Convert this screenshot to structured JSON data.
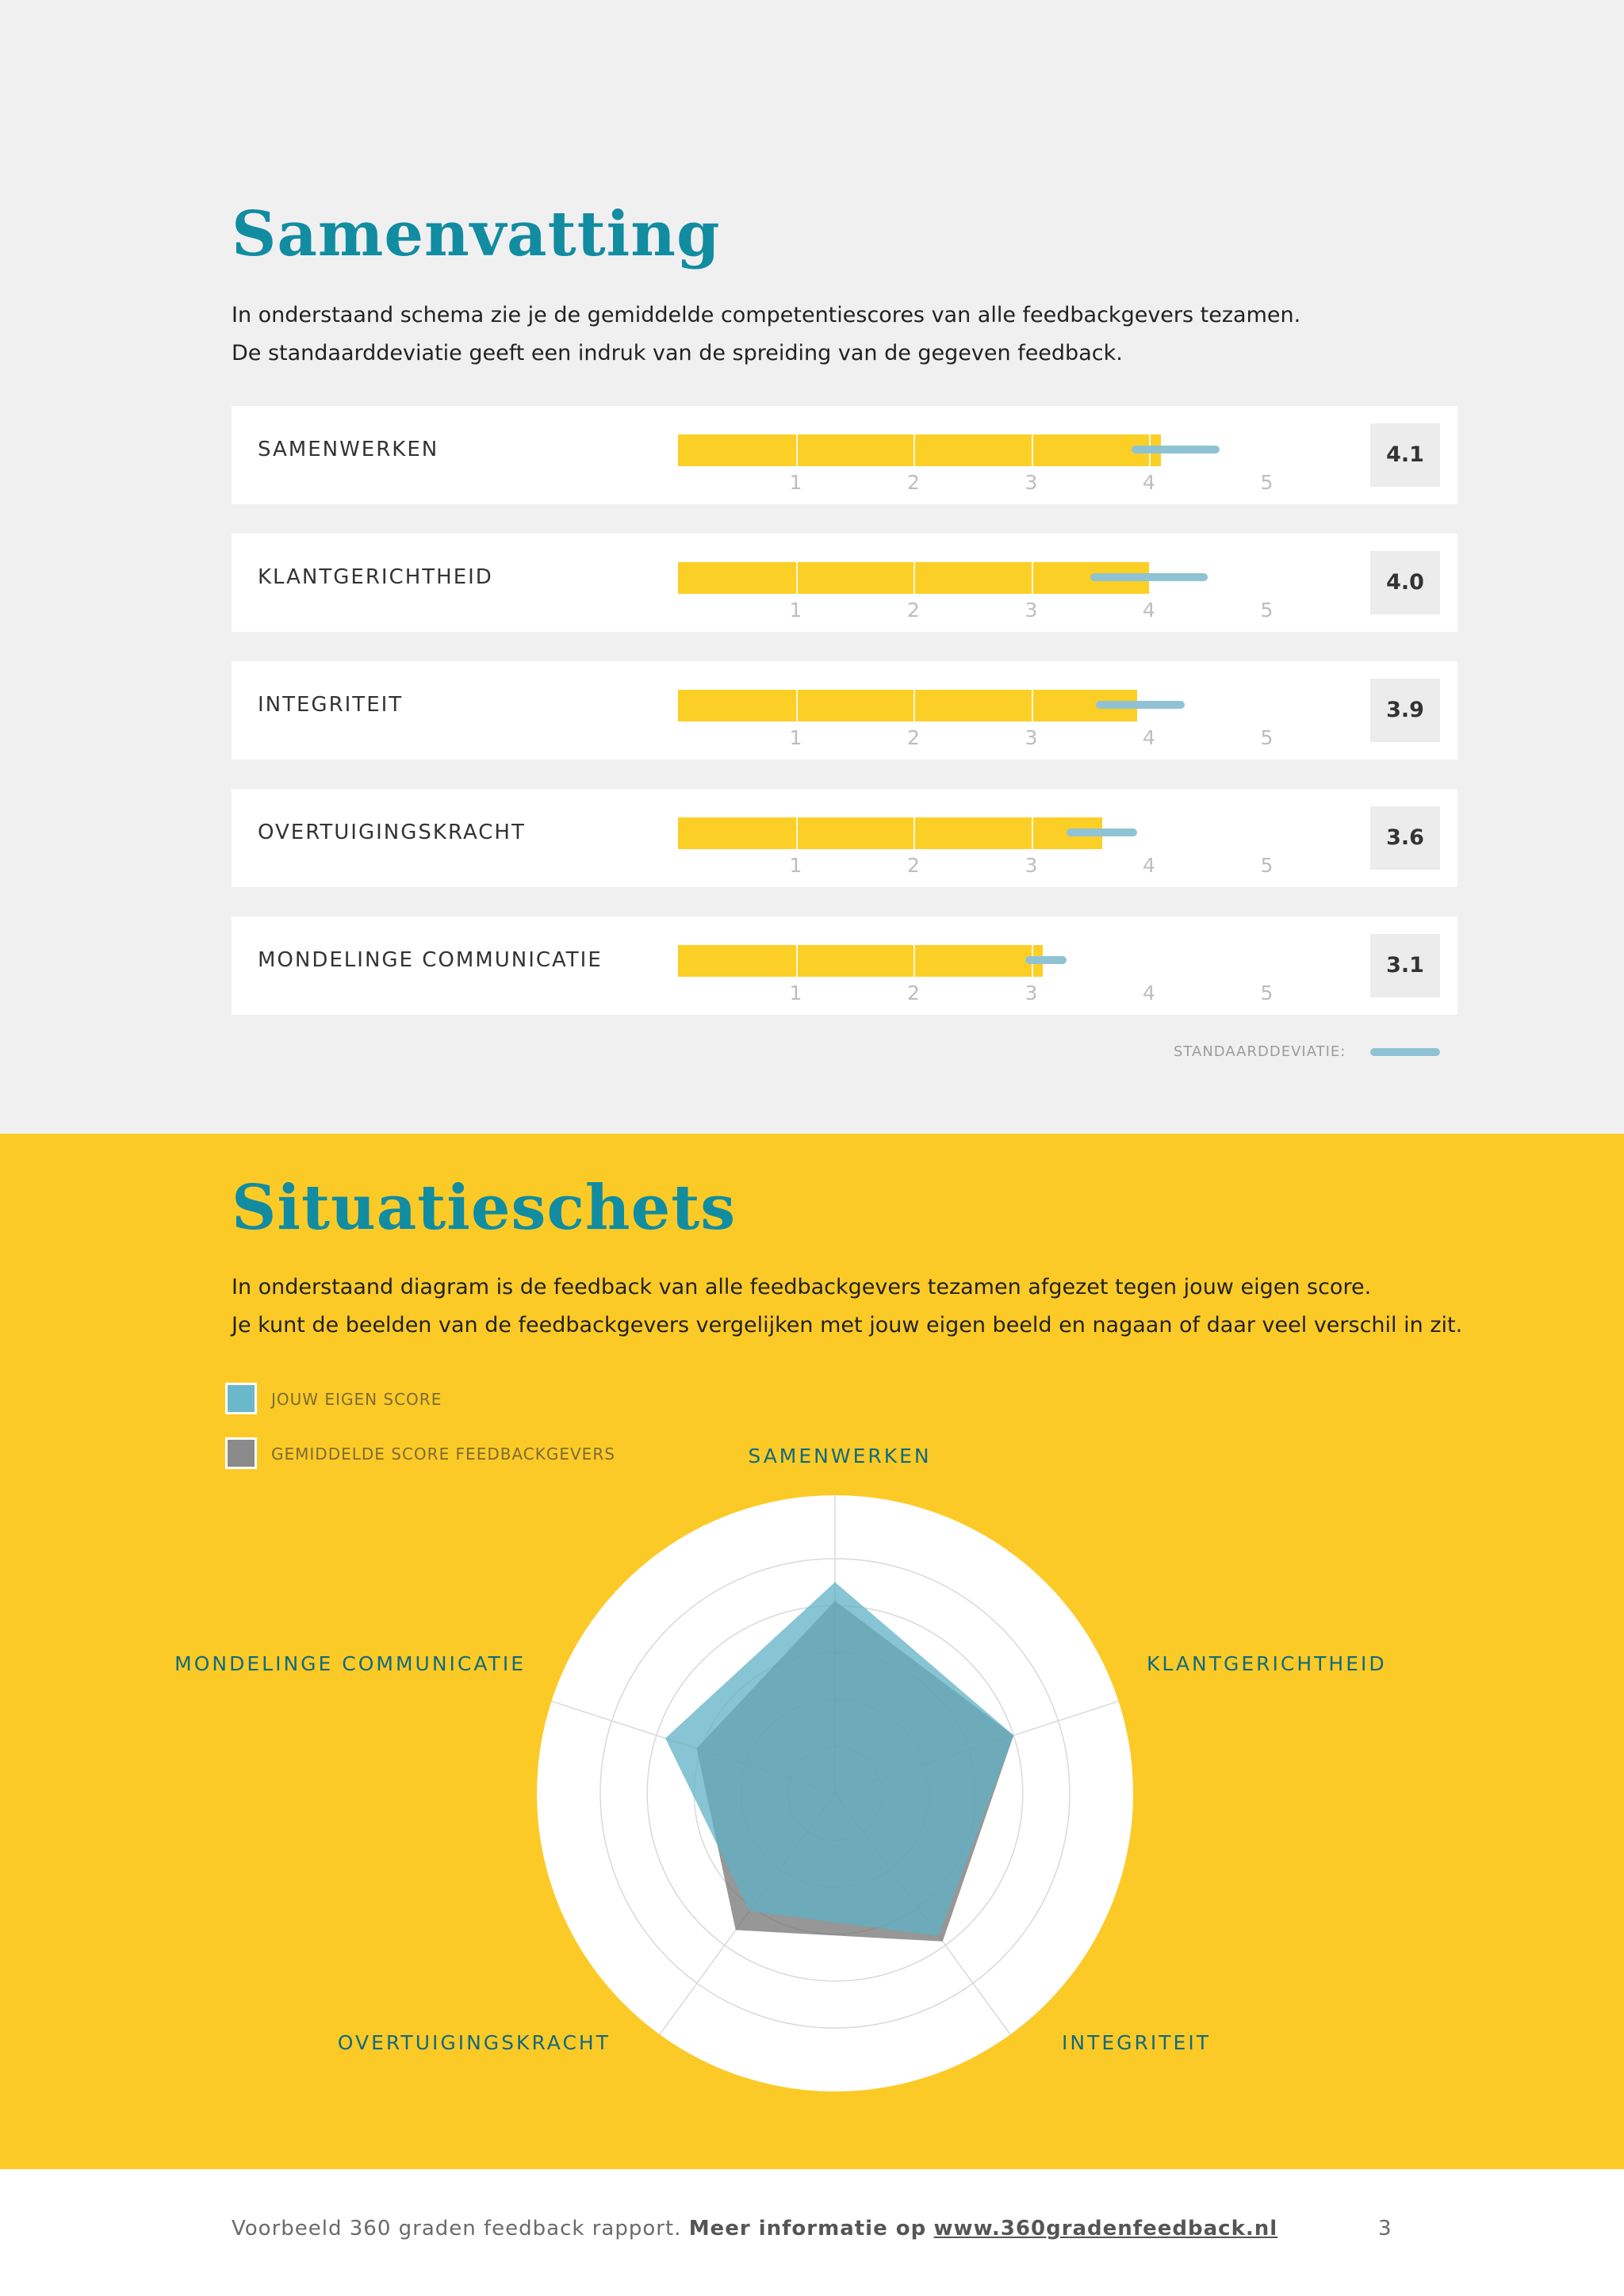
{
  "summary": {
    "title": "Samenvatting",
    "intro_line1": "In onderstaand schema zie je de gemiddelde competentiescores van alle feedbackgevers tezamen.",
    "intro_line2": "De standaarddeviatie geeft een indruk van de spreiding van de gegeven feedback.",
    "scale": [
      "1",
      "2",
      "3",
      "4",
      "5"
    ],
    "scale_max": 5,
    "rows": [
      {
        "label": "SAMENWERKEN",
        "score": "4.1",
        "value": 4.1,
        "sd": [
          3.85,
          4.6
        ]
      },
      {
        "label": "KLANTGERICHTHEID",
        "score": "4.0",
        "value": 4.0,
        "sd": [
          3.5,
          4.5
        ]
      },
      {
        "label": "INTEGRITEIT",
        "score": "3.9",
        "value": 3.9,
        "sd": [
          3.55,
          4.3
        ]
      },
      {
        "label": "OVERTUIGINGSKRACHT",
        "score": "3.6",
        "value": 3.6,
        "sd": [
          3.3,
          3.9
        ]
      },
      {
        "label": "MONDELINGE COMMUNICATIE",
        "score": "3.1",
        "value": 3.1,
        "sd": [
          2.95,
          3.3
        ]
      }
    ],
    "sd_legend": "STANDAARDDEVIATIE:",
    "sd_color": "#8fc3d3",
    "bar_color": "#fccf26"
  },
  "situation": {
    "title": "Situatieschets",
    "intro_line1": "In onderstaand diagram is de feedback van alle feedbackgevers tezamen afgezet tegen jouw eigen score.",
    "intro_line2": "Je kunt de beelden van de feedbackgevers vergelijken met jouw eigen beeld en nagaan of daar veel verschil in zit.",
    "legend_own": "JOUW EIGEN SCORE",
    "legend_avg": "GEMIDDELDE SCORE FEEDBACKGEVERS",
    "own_color": "#6bb8cc",
    "avg_color": "#7e7e7e"
  },
  "chart_data": {
    "type": "radar",
    "axes": [
      "SAMENWERKEN",
      "KLANTGERICHTHEID",
      "INTEGRITEIT",
      "OVERTUIGINGSKRACHT",
      "MONDELINGE COMMUNICATIE"
    ],
    "max": 5,
    "rings": 5,
    "series": [
      {
        "name": "GEMIDDELDE SCORE FEEDBACKGEVERS",
        "values": [
          4.1,
          4.0,
          3.9,
          3.6,
          3.1
        ]
      },
      {
        "name": "JOUW EIGEN SCORE",
        "values": [
          4.5,
          4.0,
          3.75,
          3.1,
          3.8
        ]
      }
    ]
  },
  "footer": {
    "text": "Voorbeeld 360 graden feedback rapport.",
    "more": "Meer informatie op",
    "link": "www.360gradenfeedback.nl",
    "page": "3"
  }
}
